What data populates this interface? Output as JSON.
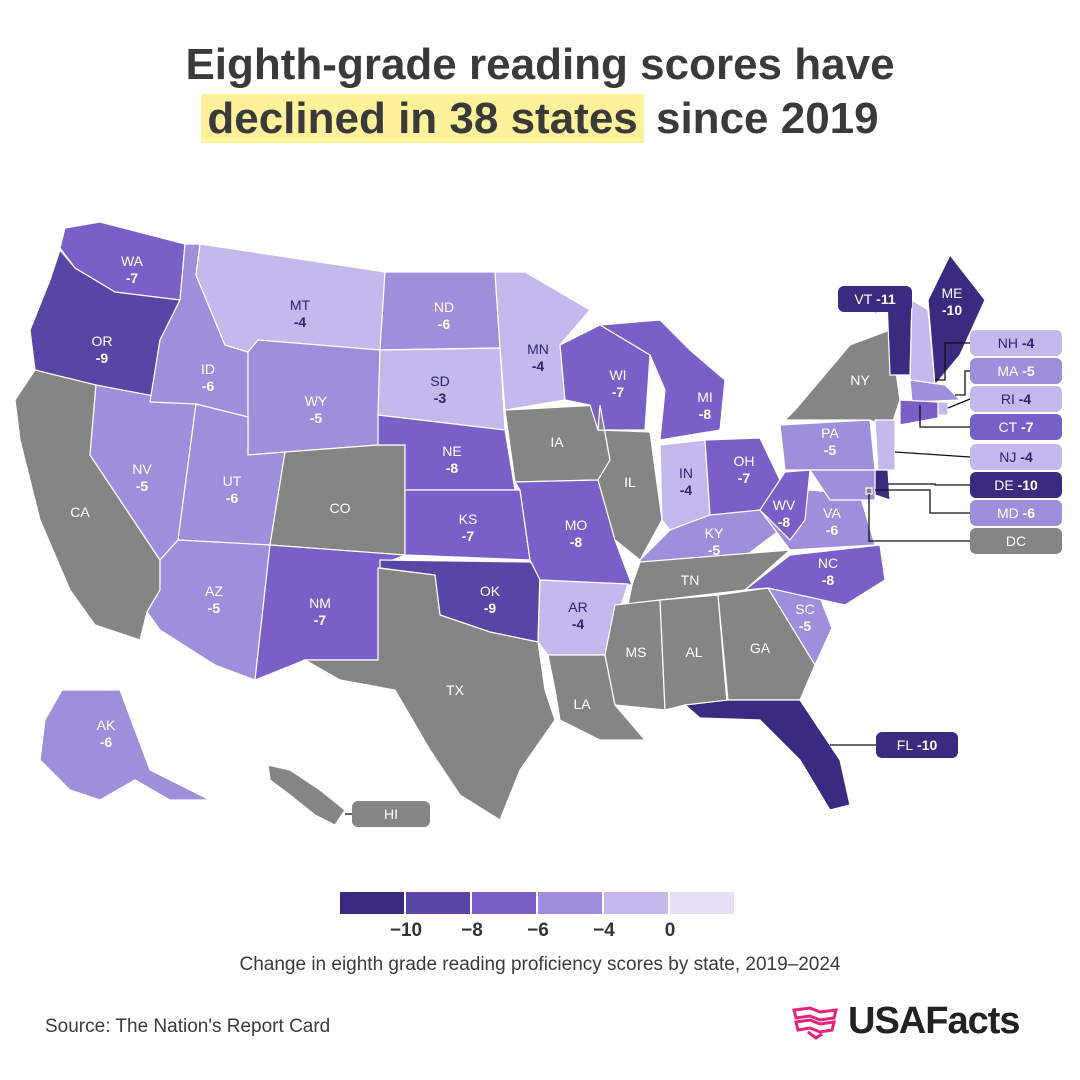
{
  "title": {
    "line1": "Eighth-grade reading scores have",
    "highlight": "declined in 38 states",
    "rest": " since 2019"
  },
  "colors": {
    "bin_le_minus10": "#3a2a80",
    "bin_minus9": "#5a44a6",
    "bin_minus7_8": "#7b5fc9",
    "bin_minus5_6": "#a08ddb",
    "bin_minus3_4": "#c4b8ec",
    "bin_ge_0": "#e6e1f8",
    "no_change": "#858585",
    "title_highlight": "#fff29a",
    "brand_pink": "#e8237b"
  },
  "states": [
    {
      "abbr": "WA",
      "value": "-7"
    },
    {
      "abbr": "OR",
      "value": "-9"
    },
    {
      "abbr": "CA",
      "value": ""
    },
    {
      "abbr": "NV",
      "value": "-5"
    },
    {
      "abbr": "ID",
      "value": "-6"
    },
    {
      "abbr": "MT",
      "value": "-4"
    },
    {
      "abbr": "WY",
      "value": "-5"
    },
    {
      "abbr": "UT",
      "value": "-6"
    },
    {
      "abbr": "AZ",
      "value": "-5"
    },
    {
      "abbr": "CO",
      "value": ""
    },
    {
      "abbr": "NM",
      "value": "-7"
    },
    {
      "abbr": "ND",
      "value": "-6"
    },
    {
      "abbr": "SD",
      "value": "-3"
    },
    {
      "abbr": "NE",
      "value": "-8"
    },
    {
      "abbr": "KS",
      "value": "-7"
    },
    {
      "abbr": "OK",
      "value": "-9"
    },
    {
      "abbr": "TX",
      "value": ""
    },
    {
      "abbr": "MN",
      "value": "-4"
    },
    {
      "abbr": "IA",
      "value": ""
    },
    {
      "abbr": "MO",
      "value": "-8"
    },
    {
      "abbr": "AR",
      "value": "-4"
    },
    {
      "abbr": "LA",
      "value": ""
    },
    {
      "abbr": "WI",
      "value": "-7"
    },
    {
      "abbr": "IL",
      "value": ""
    },
    {
      "abbr": "MI",
      "value": "-8"
    },
    {
      "abbr": "IN",
      "value": "-4"
    },
    {
      "abbr": "OH",
      "value": "-7"
    },
    {
      "abbr": "KY",
      "value": "-5"
    },
    {
      "abbr": "TN",
      "value": ""
    },
    {
      "abbr": "MS",
      "value": ""
    },
    {
      "abbr": "AL",
      "value": ""
    },
    {
      "abbr": "GA",
      "value": ""
    },
    {
      "abbr": "FL",
      "value": "-10"
    },
    {
      "abbr": "SC",
      "value": "-5"
    },
    {
      "abbr": "NC",
      "value": "-8"
    },
    {
      "abbr": "VA",
      "value": "-6"
    },
    {
      "abbr": "WV",
      "value": "-8"
    },
    {
      "abbr": "PA",
      "value": "-5"
    },
    {
      "abbr": "NY",
      "value": ""
    },
    {
      "abbr": "VT",
      "value": "-11"
    },
    {
      "abbr": "NH",
      "value": "-4"
    },
    {
      "abbr": "ME",
      "value": "-10"
    },
    {
      "abbr": "MA",
      "value": "-5"
    },
    {
      "abbr": "RI",
      "value": "-4"
    },
    {
      "abbr": "CT",
      "value": "-7"
    },
    {
      "abbr": "NJ",
      "value": "-4"
    },
    {
      "abbr": "DE",
      "value": "-10"
    },
    {
      "abbr": "MD",
      "value": "-6"
    },
    {
      "abbr": "DC",
      "value": ""
    },
    {
      "abbr": "AK",
      "value": "-6"
    },
    {
      "abbr": "HI",
      "value": ""
    }
  ],
  "legend": {
    "ticks": [
      "−10",
      "−8",
      "−6",
      "−4",
      "0"
    ],
    "caption": "Change in eighth grade reading proficiency scores by state, 2019–2024"
  },
  "source": "Source: The Nation's Report Card",
  "brand": "USAFacts"
}
